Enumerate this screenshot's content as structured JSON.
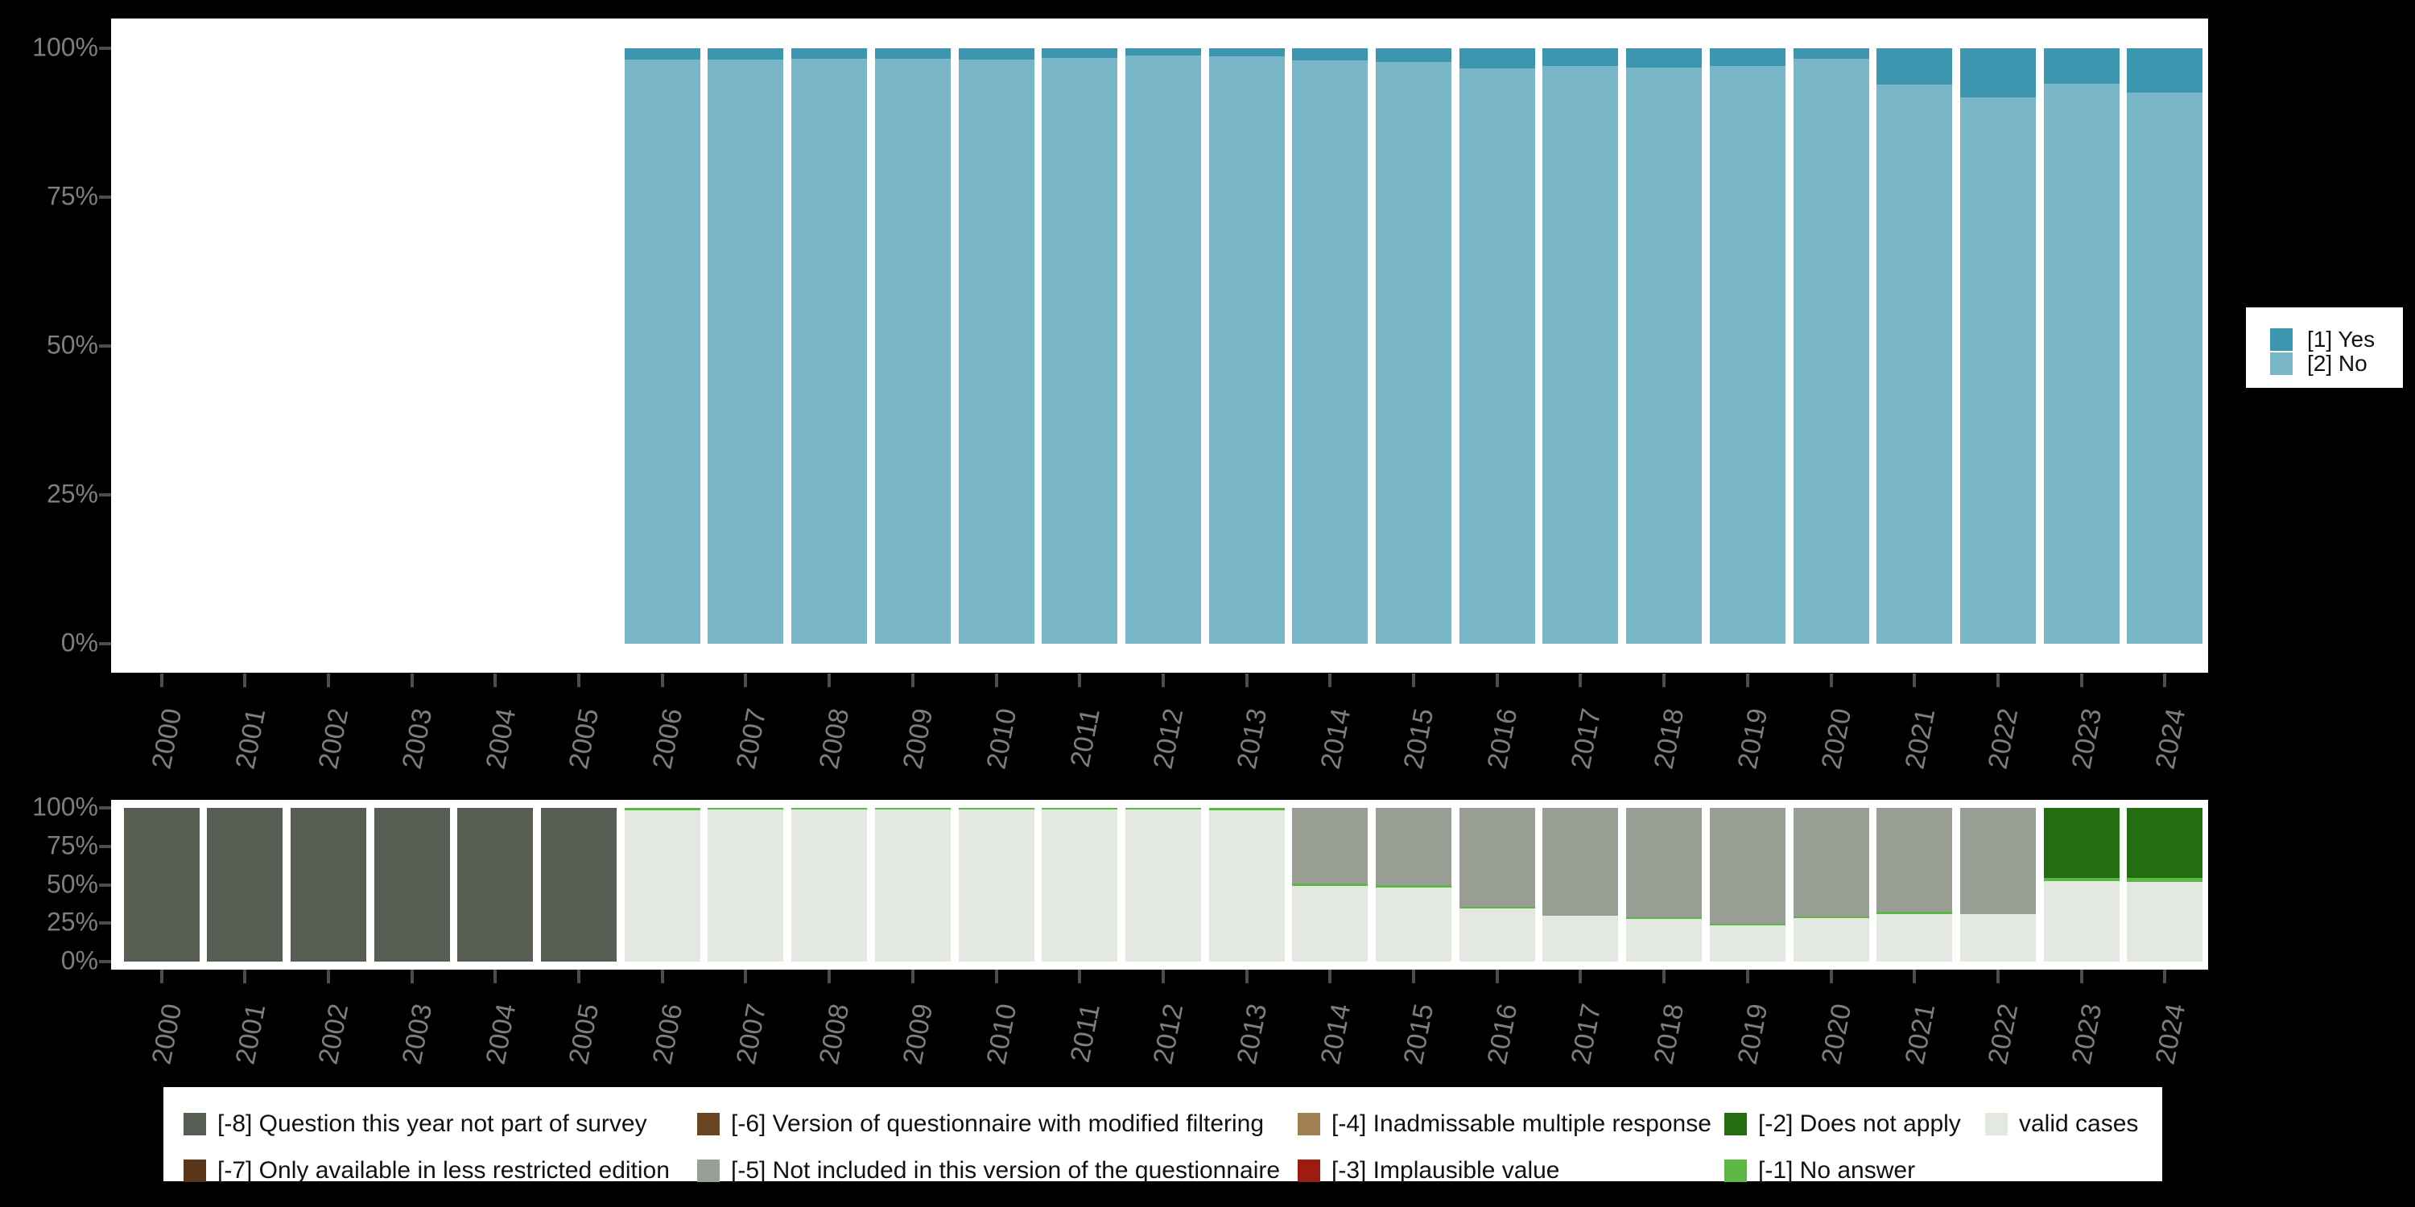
{
  "colors": {
    "background": "#000000",
    "plot_bg": "#ffffff",
    "axis_label": "#7e7e7e",
    "tick_mark": "#4d4d4d",
    "legend_text": "#111111",
    "yes": "#3d96b0",
    "no": "#79b6c8",
    "m8": "#575f55",
    "m7": "#5a3517",
    "m6": "#6b4522",
    "m5": "#989e94",
    "m4": "#a08050",
    "m3": "#9e1b10",
    "m2": "#256d11",
    "m1": "#5bb843",
    "valid": "#e3e8e1"
  },
  "y_axis": {
    "tick_labels": [
      "100%",
      "75%",
      "50%",
      "25%",
      "0%"
    ],
    "tick_values": [
      100,
      75,
      50,
      25,
      0
    ]
  },
  "years": [
    "2000",
    "2001",
    "2002",
    "2003",
    "2004",
    "2005",
    "2006",
    "2007",
    "2008",
    "2009",
    "2010",
    "2011",
    "2012",
    "2013",
    "2014",
    "2015",
    "2016",
    "2017",
    "2018",
    "2019",
    "2020",
    "2021",
    "2022",
    "2023",
    "2024"
  ],
  "top_legend": {
    "items": [
      {
        "key": "yes",
        "label": "[1] Yes"
      },
      {
        "key": "no",
        "label": "[2] No"
      }
    ]
  },
  "bottom_legend": {
    "columns": [
      [
        {
          "key": "m8",
          "label": "[-8] Question this year not part of survey"
        },
        {
          "key": "m7",
          "label": "[-7] Only available in less restricted edition"
        }
      ],
      [
        {
          "key": "m6",
          "label": "[-6] Version of questionnaire with modified filtering"
        },
        {
          "key": "m5",
          "label": "[-5] Not included in this version of the questionnaire"
        }
      ],
      [
        {
          "key": "m4",
          "label": "[-4] Inadmissable multiple response"
        },
        {
          "key": "m3",
          "label": "[-3] Implausible value"
        }
      ],
      [
        {
          "key": "m2",
          "label": "[-2] Does not apply"
        },
        {
          "key": "m1",
          "label": "[-1] No answer"
        }
      ],
      [
        {
          "key": "valid",
          "label": "valid cases"
        }
      ]
    ]
  },
  "chart_data": [
    {
      "type": "bar",
      "stacked": true,
      "title": "",
      "xlabel": "",
      "ylabel": "",
      "ylim": [
        0,
        100
      ],
      "grid": false,
      "legend_position": "right",
      "categories": [
        "2000",
        "2001",
        "2002",
        "2003",
        "2004",
        "2005",
        "2006",
        "2007",
        "2008",
        "2009",
        "2010",
        "2011",
        "2012",
        "2013",
        "2014",
        "2015",
        "2016",
        "2017",
        "2018",
        "2019",
        "2020",
        "2021",
        "2022",
        "2023",
        "2024"
      ],
      "series": [
        {
          "name": "[1] Yes",
          "color_key": "yes",
          "values": [
            null,
            null,
            null,
            null,
            null,
            null,
            1.9,
            1.9,
            1.8,
            1.8,
            1.9,
            1.6,
            1.2,
            1.4,
            2.0,
            2.3,
            3.4,
            3.0,
            3.2,
            3.0,
            1.7,
            6.1,
            8.2,
            5.9,
            7.4
          ]
        },
        {
          "name": "[2] No",
          "color_key": "no",
          "values": [
            null,
            null,
            null,
            null,
            null,
            null,
            98.1,
            98.1,
            98.2,
            98.2,
            98.1,
            98.4,
            98.8,
            98.6,
            98.0,
            97.7,
            96.6,
            97.0,
            96.8,
            97.0,
            98.3,
            93.9,
            91.8,
            94.1,
            92.6
          ]
        }
      ]
    },
    {
      "type": "bar",
      "stacked": true,
      "title": "",
      "xlabel": "",
      "ylabel": "",
      "ylim": [
        0,
        100
      ],
      "grid": false,
      "legend_position": "bottom",
      "categories": [
        "2000",
        "2001",
        "2002",
        "2003",
        "2004",
        "2005",
        "2006",
        "2007",
        "2008",
        "2009",
        "2010",
        "2011",
        "2012",
        "2013",
        "2014",
        "2015",
        "2016",
        "2017",
        "2018",
        "2019",
        "2020",
        "2021",
        "2022",
        "2023",
        "2024"
      ],
      "stack_order_top_to_bottom": [
        "m8",
        "m5",
        "m2",
        "m1",
        "valid"
      ],
      "series": [
        {
          "name": "[-8] Question this year not part of survey",
          "color_key": "m8",
          "values": [
            100,
            100,
            100,
            100,
            100,
            100,
            0,
            0,
            0,
            0,
            0,
            0,
            0,
            0,
            0,
            0,
            0,
            0,
            0,
            0,
            0,
            0,
            0,
            0,
            0
          ]
        },
        {
          "name": "[-7] Only available in less restricted edition",
          "color_key": "m7",
          "values": [
            0,
            0,
            0,
            0,
            0,
            0,
            0,
            0,
            0,
            0,
            0,
            0,
            0,
            0,
            0,
            0,
            0,
            0,
            0,
            0,
            0,
            0,
            0,
            0,
            0
          ]
        },
        {
          "name": "[-6] Version of questionnaire with modified filtering",
          "color_key": "m6",
          "values": [
            0,
            0,
            0,
            0,
            0,
            0,
            0,
            0,
            0,
            0,
            0,
            0,
            0,
            0,
            0,
            0,
            0,
            0,
            0,
            0,
            0,
            0,
            0,
            0,
            0
          ]
        },
        {
          "name": "[-5] Not included in this version of the questionnaire",
          "color_key": "m5",
          "values": [
            0,
            0,
            0,
            0,
            0,
            0,
            0,
            0,
            0,
            0,
            0,
            0,
            0,
            0,
            49.2,
            50.3,
            64.4,
            70.2,
            71.2,
            75.4,
            70.7,
            67.5,
            69.1,
            0,
            0
          ]
        },
        {
          "name": "[-4] Inadmissable multiple response",
          "color_key": "m4",
          "values": [
            0,
            0,
            0,
            0,
            0,
            0,
            0,
            0,
            0,
            0,
            0,
            0,
            0,
            0,
            0,
            0,
            0,
            0,
            0,
            0,
            0,
            0,
            0,
            0,
            0
          ]
        },
        {
          "name": "[-3] Implausible value",
          "color_key": "m3",
          "values": [
            0,
            0,
            0,
            0,
            0,
            0,
            0,
            0,
            0,
            0,
            0,
            0,
            0,
            0,
            0,
            0,
            0,
            0,
            0,
            0,
            0,
            0,
            0,
            0,
            0
          ]
        },
        {
          "name": "[-2] Does not apply",
          "color_key": "m2",
          "values": [
            0,
            0,
            0,
            0,
            0,
            0,
            0,
            0,
            0,
            0,
            0,
            0,
            0,
            0,
            0,
            0,
            0,
            0,
            0,
            0,
            0,
            0,
            0,
            45.5,
            45.8
          ]
        },
        {
          "name": "[-1] No answer",
          "color_key": "m1",
          "values": [
            0,
            0,
            0,
            0,
            0,
            0,
            1.7,
            1.0,
            1.2,
            1.2,
            1.2,
            1.0,
            1.2,
            1.7,
            1.5,
            1.5,
            1.0,
            0,
            1.0,
            1.2,
            1.0,
            1.7,
            0,
            2.0,
            2.4
          ]
        },
        {
          "name": "valid cases",
          "color_key": "valid",
          "values": [
            0,
            0,
            0,
            0,
            0,
            0,
            98.3,
            99.0,
            98.8,
            98.8,
            98.8,
            99.0,
            98.8,
            98.3,
            49.3,
            48.2,
            34.6,
            29.8,
            27.8,
            23.4,
            28.3,
            30.8,
            30.9,
            52.5,
            51.8
          ]
        }
      ]
    }
  ]
}
